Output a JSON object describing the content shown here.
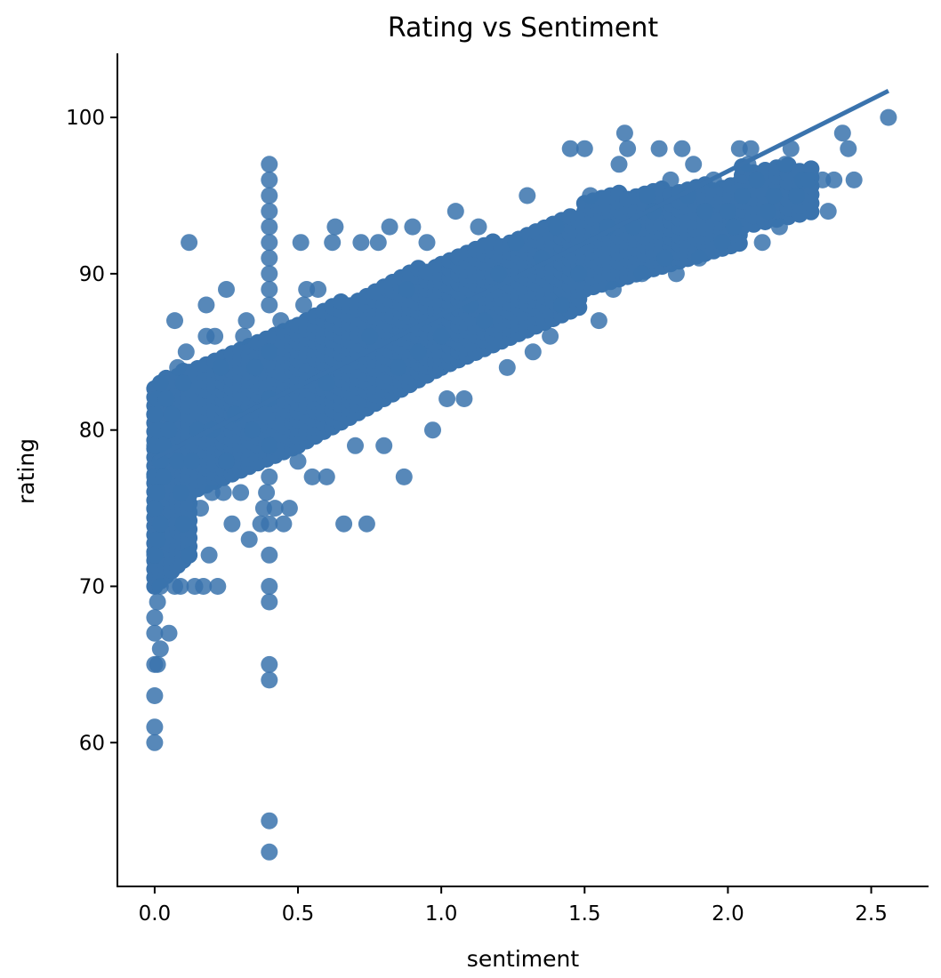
{
  "chart_data": {
    "type": "scatter",
    "title": "Rating vs Sentiment",
    "xlabel": "sentiment",
    "ylabel": "rating",
    "xlim": [
      -0.13,
      2.7
    ],
    "ylim": [
      50.8,
      104.1
    ],
    "xticks": [
      "0.0",
      "0.5",
      "1.0",
      "1.5",
      "2.0",
      "2.5"
    ],
    "yticks": [
      "60",
      "70",
      "80",
      "90",
      "100"
    ],
    "marker_color": "#3a73ad",
    "grid": false,
    "legend": "none",
    "regression_line": {
      "x": [
        0.0,
        2.56
      ],
      "y": [
        78.2,
        101.7
      ]
    },
    "series": [
      {
        "points": [
          [
            0.0,
            60
          ],
          [
            0.0,
            61
          ],
          [
            0.0,
            63
          ],
          [
            0.0,
            65
          ],
          [
            0.01,
            65
          ],
          [
            0.0,
            67
          ],
          [
            0.0,
            68
          ],
          [
            0.01,
            69
          ],
          [
            0.02,
            66
          ],
          [
            0.02,
            70
          ],
          [
            0.0,
            72
          ],
          [
            0.01,
            73
          ],
          [
            0.02,
            74
          ],
          [
            0.0,
            75
          ],
          [
            0.01,
            76
          ],
          [
            0.0,
            77
          ],
          [
            0.02,
            78
          ],
          [
            0.0,
            79
          ],
          [
            0.01,
            80
          ],
          [
            0.0,
            81
          ],
          [
            0.01,
            82
          ],
          [
            0.02,
            83
          ],
          [
            0.03,
            77
          ],
          [
            0.03,
            79
          ],
          [
            0.04,
            82
          ],
          [
            0.05,
            67
          ],
          [
            0.05,
            80
          ],
          [
            0.06,
            81
          ],
          [
            0.07,
            87
          ],
          [
            0.07,
            70
          ],
          [
            0.08,
            78
          ],
          [
            0.08,
            84
          ],
          [
            0.09,
            70
          ],
          [
            0.09,
            76
          ],
          [
            0.1,
            74
          ],
          [
            0.1,
            83
          ],
          [
            0.11,
            85
          ],
          [
            0.12,
            92
          ],
          [
            0.12,
            72
          ],
          [
            0.13,
            78
          ],
          [
            0.14,
            70
          ],
          [
            0.15,
            80
          ],
          [
            0.16,
            75
          ],
          [
            0.17,
            70
          ],
          [
            0.18,
            88
          ],
          [
            0.18,
            86
          ],
          [
            0.19,
            72
          ],
          [
            0.2,
            80
          ],
          [
            0.2,
            76
          ],
          [
            0.21,
            86
          ],
          [
            0.22,
            70
          ],
          [
            0.23,
            84
          ],
          [
            0.24,
            76
          ],
          [
            0.25,
            89
          ],
          [
            0.25,
            78
          ],
          [
            0.27,
            74
          ],
          [
            0.28,
            81
          ],
          [
            0.3,
            76
          ],
          [
            0.31,
            86
          ],
          [
            0.32,
            87
          ],
          [
            0.33,
            73
          ],
          [
            0.34,
            80
          ],
          [
            0.35,
            84
          ],
          [
            0.37,
            74
          ],
          [
            0.38,
            75
          ],
          [
            0.39,
            76
          ],
          [
            0.4,
            53
          ],
          [
            0.4,
            55
          ],
          [
            0.4,
            64
          ],
          [
            0.4,
            65
          ],
          [
            0.4,
            69
          ],
          [
            0.4,
            70
          ],
          [
            0.4,
            72
          ],
          [
            0.4,
            74
          ],
          [
            0.4,
            77
          ],
          [
            0.4,
            79
          ],
          [
            0.4,
            82
          ],
          [
            0.4,
            85
          ],
          [
            0.4,
            88
          ],
          [
            0.4,
            89
          ],
          [
            0.4,
            90
          ],
          [
            0.4,
            91
          ],
          [
            0.4,
            92
          ],
          [
            0.4,
            93
          ],
          [
            0.4,
            94
          ],
          [
            0.4,
            95
          ],
          [
            0.4,
            96
          ],
          [
            0.4,
            97
          ],
          [
            0.42,
            75
          ],
          [
            0.44,
            87
          ],
          [
            0.45,
            74
          ],
          [
            0.47,
            75
          ],
          [
            0.5,
            78
          ],
          [
            0.51,
            92
          ],
          [
            0.52,
            88
          ],
          [
            0.53,
            89
          ],
          [
            0.55,
            77
          ],
          [
            0.57,
            89
          ],
          [
            0.6,
            77
          ],
          [
            0.6,
            83
          ],
          [
            0.62,
            92
          ],
          [
            0.63,
            93
          ],
          [
            0.66,
            74
          ],
          [
            0.7,
            79
          ],
          [
            0.72,
            92
          ],
          [
            0.74,
            74
          ],
          [
            0.75,
            86
          ],
          [
            0.78,
            92
          ],
          [
            0.8,
            79
          ],
          [
            0.82,
            93
          ],
          [
            0.85,
            84
          ],
          [
            0.87,
            77
          ],
          [
            0.88,
            89
          ],
          [
            0.9,
            93
          ],
          [
            0.92,
            85
          ],
          [
            0.95,
            92
          ],
          [
            0.97,
            80
          ],
          [
            1.0,
            86
          ],
          [
            1.02,
            82
          ],
          [
            1.05,
            94
          ],
          [
            1.08,
            82
          ],
          [
            1.1,
            88
          ],
          [
            1.13,
            93
          ],
          [
            1.15,
            87
          ],
          [
            1.2,
            90
          ],
          [
            1.23,
            84
          ],
          [
            1.26,
            92
          ],
          [
            1.3,
            95
          ],
          [
            1.32,
            85
          ],
          [
            1.35,
            91
          ],
          [
            1.38,
            86
          ],
          [
            1.4,
            93
          ],
          [
            1.42,
            88
          ],
          [
            1.45,
            98
          ],
          [
            1.48,
            90
          ],
          [
            1.5,
            98
          ],
          [
            1.52,
            95
          ],
          [
            1.55,
            87
          ],
          [
            1.58,
            93
          ],
          [
            1.6,
            89
          ],
          [
            1.62,
            97
          ],
          [
            1.64,
            99
          ],
          [
            1.65,
            98
          ],
          [
            1.67,
            93
          ],
          [
            1.7,
            90
          ],
          [
            1.72,
            95
          ],
          [
            1.74,
            94
          ],
          [
            1.76,
            98
          ],
          [
            1.78,
            91
          ],
          [
            1.8,
            96
          ],
          [
            1.82,
            90
          ],
          [
            1.84,
            98
          ],
          [
            1.86,
            95
          ],
          [
            1.88,
            97
          ],
          [
            1.9,
            91
          ],
          [
            1.92,
            94
          ],
          [
            1.95,
            96
          ],
          [
            1.98,
            92
          ],
          [
            2.0,
            94
          ],
          [
            2.02,
            93
          ],
          [
            2.04,
            98
          ],
          [
            2.05,
            95
          ],
          [
            2.07,
            97
          ],
          [
            2.08,
            98
          ],
          [
            2.1,
            96
          ],
          [
            2.12,
            92
          ],
          [
            2.14,
            94
          ],
          [
            2.16,
            95
          ],
          [
            2.18,
            93
          ],
          [
            2.2,
            97
          ],
          [
            2.22,
            98
          ],
          [
            2.24,
            95
          ],
          [
            2.26,
            96
          ],
          [
            2.28,
            96
          ],
          [
            2.33,
            96
          ],
          [
            2.35,
            94
          ],
          [
            2.37,
            96
          ],
          [
            2.4,
            99
          ],
          [
            2.42,
            98
          ],
          [
            2.44,
            96
          ],
          [
            2.56,
            100
          ]
        ]
      }
    ]
  }
}
